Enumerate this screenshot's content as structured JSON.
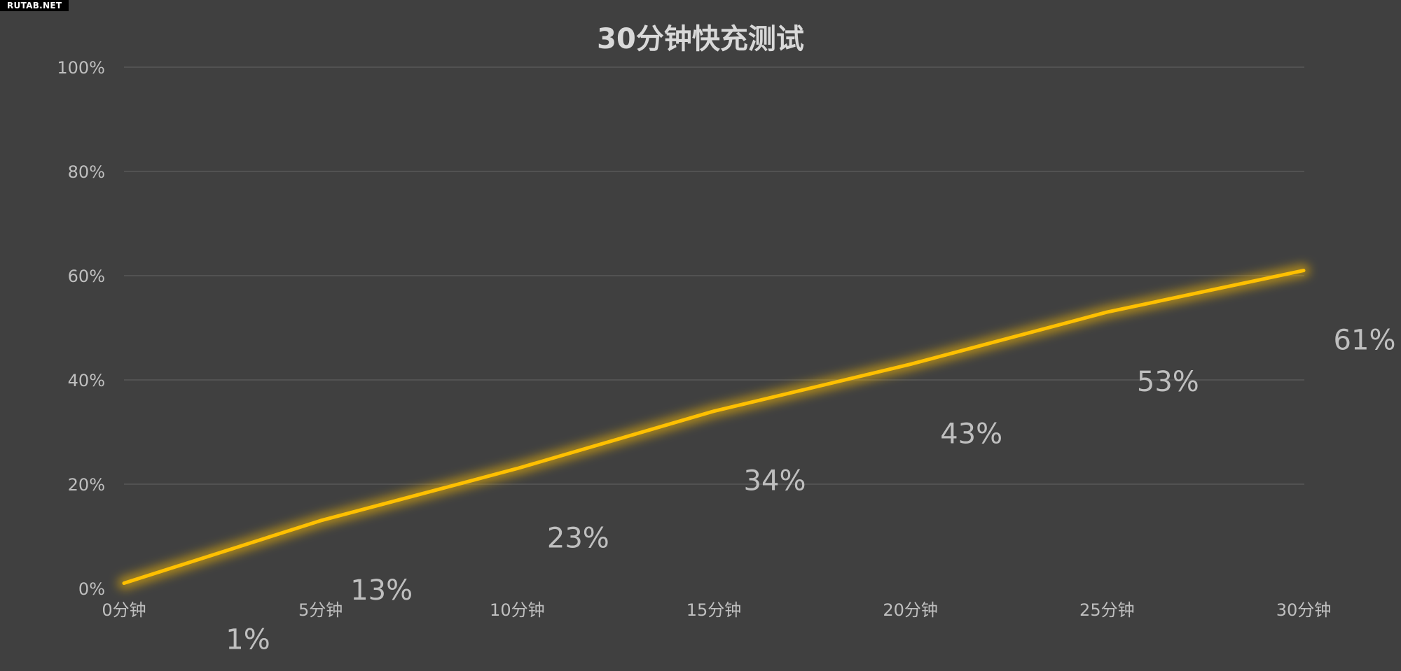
{
  "watermark": "RUTAB.NET",
  "chart_data": {
    "type": "line",
    "title": "30分钟快充测试",
    "xlabel": "",
    "ylabel": "",
    "categories": [
      "0分钟",
      "5分钟",
      "10分钟",
      "15分钟",
      "20分钟",
      "25分钟",
      "30分钟"
    ],
    "data_labels": [
      "1%",
      "13%",
      "23%",
      "34%",
      "43%",
      "53%",
      "61%"
    ],
    "series": [
      {
        "values": [
          1,
          13,
          23,
          34,
          43,
          53,
          61
        ],
        "color": "#ffc000"
      }
    ],
    "ylim": [
      0,
      100
    ],
    "yticks": [
      0,
      20,
      40,
      60,
      80,
      100
    ],
    "ytick_labels": [
      "0%",
      "20%",
      "40%",
      "60%",
      "80%",
      "100%"
    ],
    "grid": true,
    "legend": "none",
    "colors": {
      "background": "#404040",
      "gridline": "#595959",
      "text": "#bfbfbf",
      "title": "#d9d9d9",
      "line": "#ffc000"
    }
  }
}
